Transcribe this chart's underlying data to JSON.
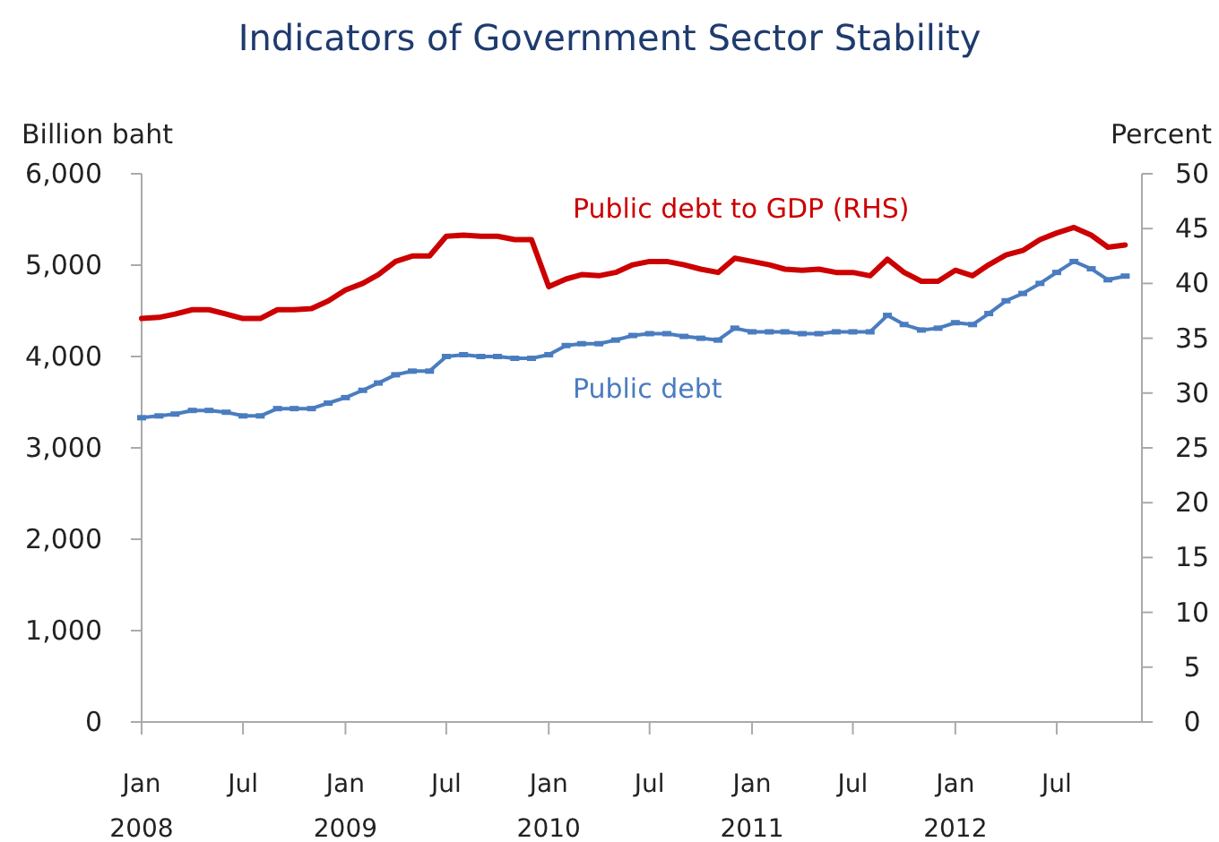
{
  "chart_data": {
    "type": "line",
    "title": "Indicators of Government Sector Stability",
    "ylabel": "Billion baht",
    "y2label": "Percent",
    "x": [
      "2008-01",
      "2008-02",
      "2008-03",
      "2008-04",
      "2008-05",
      "2008-06",
      "2008-07",
      "2008-08",
      "2008-09",
      "2008-10",
      "2008-11",
      "2008-12",
      "2009-01",
      "2009-02",
      "2009-03",
      "2009-04",
      "2009-05",
      "2009-06",
      "2009-07",
      "2009-08",
      "2009-09",
      "2009-10",
      "2009-11",
      "2009-12",
      "2010-01",
      "2010-02",
      "2010-03",
      "2010-04",
      "2010-05",
      "2010-06",
      "2010-07",
      "2010-08",
      "2010-09",
      "2010-10",
      "2010-11",
      "2010-12",
      "2011-01",
      "2011-02",
      "2011-03",
      "2011-04",
      "2011-05",
      "2011-06",
      "2011-07",
      "2011-08",
      "2011-09",
      "2011-10",
      "2011-11",
      "2011-12",
      "2012-01",
      "2012-02",
      "2012-03",
      "2012-04",
      "2012-05",
      "2012-06",
      "2012-07",
      "2012-08",
      "2012-09",
      "2012-10",
      "2012-11"
    ],
    "series": [
      {
        "name": "Public debt to GDP (RHS)",
        "color": "#cc0000",
        "axis": "y2",
        "marker": "none",
        "values": [
          36.8,
          36.9,
          37.2,
          37.6,
          37.6,
          37.2,
          36.8,
          36.8,
          37.6,
          37.6,
          37.7,
          38.4,
          39.4,
          40.0,
          40.8,
          42.0,
          42.5,
          42.5,
          44.3,
          44.4,
          44.3,
          44.3,
          44.0,
          44.0,
          39.7,
          40.4,
          40.8,
          40.7,
          41.0,
          41.7,
          42.0,
          42.0,
          41.7,
          41.3,
          41.0,
          42.3,
          42.0,
          41.7,
          41.3,
          41.2,
          41.3,
          41.0,
          41.0,
          40.7,
          42.2,
          41.0,
          40.2,
          40.2,
          41.2,
          40.7,
          41.7,
          42.6,
          43.0,
          44.0,
          44.6,
          45.1,
          44.4,
          43.3,
          43.5
        ]
      },
      {
        "name": "Public debt",
        "color": "#4a7cc0",
        "axis": "y",
        "marker": "square",
        "values": [
          3330,
          3350,
          3370,
          3410,
          3410,
          3390,
          3350,
          3350,
          3430,
          3430,
          3430,
          3490,
          3550,
          3630,
          3710,
          3800,
          3840,
          3840,
          4000,
          4020,
          4000,
          4000,
          3980,
          3980,
          4020,
          4120,
          4140,
          4140,
          4180,
          4230,
          4250,
          4250,
          4220,
          4200,
          4180,
          4310,
          4270,
          4270,
          4270,
          4250,
          4250,
          4270,
          4270,
          4270,
          4450,
          4350,
          4290,
          4310,
          4370,
          4350,
          4470,
          4610,
          4690,
          4800,
          4920,
          5040,
          4960,
          4840,
          4880
        ]
      }
    ],
    "xlim": [
      "2008-01",
      "2012-12"
    ],
    "xticks": [
      {
        "value": "2008-01",
        "label": "Jan 2008"
      },
      {
        "value": "2008-07",
        "label": "Jul"
      },
      {
        "value": "2009-01",
        "label": "Jan 2009"
      },
      {
        "value": "2009-07",
        "label": "Jul"
      },
      {
        "value": "2010-01",
        "label": "Jan 2010"
      },
      {
        "value": "2010-07",
        "label": "Jul"
      },
      {
        "value": "2011-01",
        "label": "Jan 2011"
      },
      {
        "value": "2011-07",
        "label": "Jul"
      },
      {
        "value": "2012-01",
        "label": "Jan 2012"
      },
      {
        "value": "2012-07",
        "label": "Jul"
      }
    ],
    "ylim": [
      0,
      6000
    ],
    "yticks": [
      {
        "value": 0,
        "label": "0"
      },
      {
        "value": 1000,
        "label": "1,000"
      },
      {
        "value": 2000,
        "label": "2,000"
      },
      {
        "value": 3000,
        "label": "3,000"
      },
      {
        "value": 4000,
        "label": "4,000"
      },
      {
        "value": 5000,
        "label": "5,000"
      },
      {
        "value": 6000,
        "label": "6,000"
      }
    ],
    "y2lim": [
      0,
      50
    ],
    "y2ticks": [
      0,
      5,
      10,
      15,
      20,
      25,
      30,
      35,
      40,
      45,
      50
    ],
    "grid": false,
    "line_style": "solid"
  }
}
